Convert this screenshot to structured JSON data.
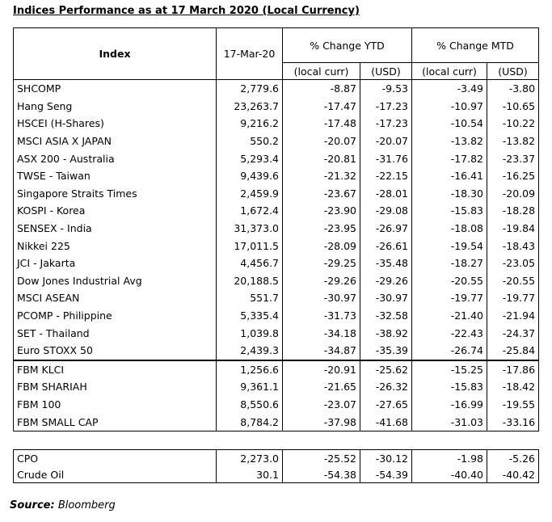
{
  "title": "Indices Performance as at 17 March 2020 (Local Currency)",
  "headers": {
    "index": "Index",
    "date": "17-Mar-20",
    "ytd": "% Change YTD",
    "mtd": "% Change MTD",
    "local": "(local curr)",
    "usd": "(USD)"
  },
  "rows": [
    {
      "name": "SHCOMP",
      "value": "2,779.6",
      "ytd_local": "-8.87",
      "ytd_usd": "-9.53",
      "mtd_local": "-3.49",
      "mtd_usd": "-3.80"
    },
    {
      "name": "Hang Seng",
      "value": "23,263.7",
      "ytd_local": "-17.47",
      "ytd_usd": "-17.23",
      "mtd_local": "-10.97",
      "mtd_usd": "-10.65"
    },
    {
      "name": "HSCEI (H-Shares)",
      "value": "9,216.2",
      "ytd_local": "-17.48",
      "ytd_usd": "-17.23",
      "mtd_local": "-10.54",
      "mtd_usd": "-10.22"
    },
    {
      "name": "MSCI ASIA X JAPAN",
      "value": "550.2",
      "ytd_local": "-20.07",
      "ytd_usd": "-20.07",
      "mtd_local": "-13.82",
      "mtd_usd": "-13.82"
    },
    {
      "name": "ASX 200 - Australia",
      "value": "5,293.4",
      "ytd_local": "-20.81",
      "ytd_usd": "-31.76",
      "mtd_local": "-17.82",
      "mtd_usd": "-23.37"
    },
    {
      "name": "TWSE - Taiwan",
      "value": "9,439.6",
      "ytd_local": "-21.32",
      "ytd_usd": "-22.15",
      "mtd_local": "-16.41",
      "mtd_usd": "-16.25"
    },
    {
      "name": "Singapore Straits Times",
      "value": "2,459.9",
      "ytd_local": "-23.67",
      "ytd_usd": "-28.01",
      "mtd_local": "-18.30",
      "mtd_usd": "-20.09"
    },
    {
      "name": "KOSPI - Korea",
      "value": "1,672.4",
      "ytd_local": "-23.90",
      "ytd_usd": "-29.08",
      "mtd_local": "-15.83",
      "mtd_usd": "-18.28"
    },
    {
      "name": "SENSEX - India",
      "value": "31,373.0",
      "ytd_local": "-23.95",
      "ytd_usd": "-26.97",
      "mtd_local": "-18.08",
      "mtd_usd": "-19.84"
    },
    {
      "name": "Nikkei 225",
      "value": "17,011.5",
      "ytd_local": "-28.09",
      "ytd_usd": "-26.61",
      "mtd_local": "-19.54",
      "mtd_usd": "-18.43"
    },
    {
      "name": "JCI - Jakarta",
      "value": "4,456.7",
      "ytd_local": "-29.25",
      "ytd_usd": "-35.48",
      "mtd_local": "-18.27",
      "mtd_usd": "-23.05"
    },
    {
      "name": "Dow Jones Industrial Avg",
      "value": "20,188.5",
      "ytd_local": "-29.26",
      "ytd_usd": "-29.26",
      "mtd_local": "-20.55",
      "mtd_usd": "-20.55"
    },
    {
      "name": "MSCI ASEAN",
      "value": "551.7",
      "ytd_local": "-30.97",
      "ytd_usd": "-30.97",
      "mtd_local": "-19.77",
      "mtd_usd": "-19.77"
    },
    {
      "name": "PCOMP - Philippine",
      "value": "5,335.4",
      "ytd_local": "-31.73",
      "ytd_usd": "-32.58",
      "mtd_local": "-21.40",
      "mtd_usd": "-21.94"
    },
    {
      "name": "SET - Thailand",
      "value": "1,039.8",
      "ytd_local": "-34.18",
      "ytd_usd": "-38.92",
      "mtd_local": "-22.43",
      "mtd_usd": "-24.37"
    },
    {
      "name": "Euro STOXX 50",
      "value": "2,439.3",
      "ytd_local": "-34.87",
      "ytd_usd": "-35.39",
      "mtd_local": "-26.74",
      "mtd_usd": "-25.84"
    },
    {
      "name": "FBM KLCI",
      "value": "1,256.6",
      "ytd_local": "-20.91",
      "ytd_usd": "-25.62",
      "mtd_local": "-15.25",
      "mtd_usd": "-17.86"
    },
    {
      "name": "FBM SHARIAH",
      "value": "9,361.1",
      "ytd_local": "-21.65",
      "ytd_usd": "-26.32",
      "mtd_local": "-15.83",
      "mtd_usd": "-18.42"
    },
    {
      "name": "FBM 100",
      "value": "8,550.6",
      "ytd_local": "-23.07",
      "ytd_usd": "-27.65",
      "mtd_local": "-16.99",
      "mtd_usd": "-19.55"
    },
    {
      "name": "FBM SMALL CAP",
      "value": "8,784.2",
      "ytd_local": "-37.98",
      "ytd_usd": "-41.68",
      "mtd_local": "-31.03",
      "mtd_usd": "-33.16"
    }
  ],
  "commodities": [
    {
      "name": "CPO",
      "value": "2,273.0",
      "ytd_local": "-25.52",
      "ytd_usd": "-30.12",
      "mtd_local": "-1.98",
      "mtd_usd": "-5.26"
    },
    {
      "name": "Crude Oil",
      "value": "30.1",
      "ytd_local": "-54.38",
      "ytd_usd": "-54.39",
      "mtd_local": "-40.40",
      "mtd_usd": "-40.42"
    }
  ],
  "source": {
    "label": "Source:",
    "text": "Bloomberg"
  }
}
